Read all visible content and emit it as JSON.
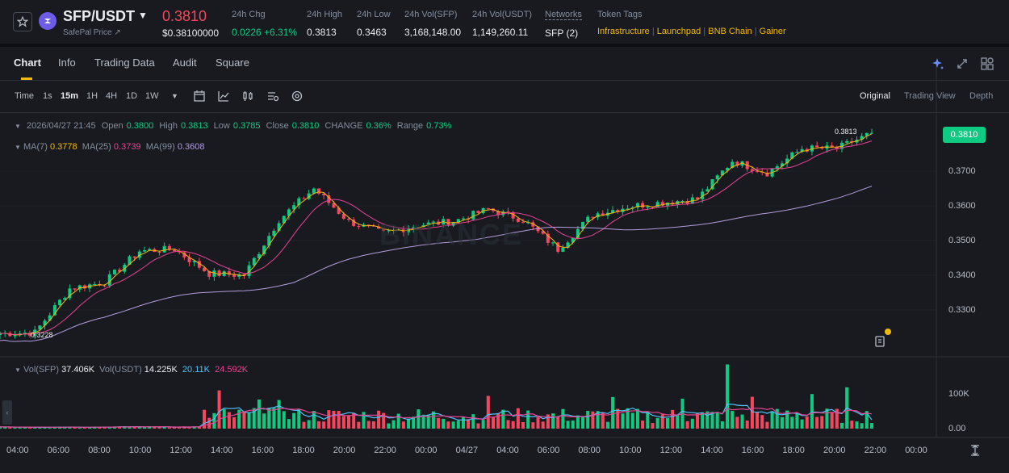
{
  "header": {
    "pair": "SFP/USDT",
    "price_link": "SafePal Price ↗",
    "last_price": "0.3810",
    "usd_price": "$0.38100000",
    "stats": [
      {
        "label": "24h Chg",
        "value": "0.0226 +6.31%"
      },
      {
        "label": "24h High",
        "value": "0.3813"
      },
      {
        "label": "24h Low",
        "value": "0.3463"
      },
      {
        "label": "24h Vol(SFP)",
        "value": "3,168,148.00"
      },
      {
        "label": "24h Vol(USDT)",
        "value": "1,149,260.11"
      },
      {
        "label": "Networks",
        "value": "SFP (2)"
      }
    ],
    "token_tags_label": "Token Tags",
    "token_tags": [
      "Infrastructure",
      "Launchpad",
      "BNB Chain",
      "Gainer"
    ]
  },
  "tabs": [
    "Chart",
    "Info",
    "Trading Data",
    "Audit",
    "Square"
  ],
  "toolbar": {
    "intervals": [
      "Time",
      "1s",
      "15m",
      "1H",
      "4H",
      "1D",
      "1W"
    ],
    "active_interval": "15m",
    "views": [
      "Original",
      "Trading View",
      "Depth"
    ],
    "active_view": "Original"
  },
  "ohlc": {
    "date": "2026/04/27 21:45",
    "open_label": "Open",
    "open": "0.3800",
    "high_label": "High",
    "high": "0.3813",
    "low_label": "Low",
    "low": "0.3785",
    "close_label": "Close",
    "close": "0.3810",
    "change_label": "CHANGE",
    "change": "0.36%",
    "range_label": "Range",
    "range": "0.73%"
  },
  "ma": {
    "ma7_label": "MA(7)",
    "ma7": "0.3778",
    "ma25_label": "MA(25)",
    "ma25": "0.3739",
    "ma99_label": "MA(99)",
    "ma99": "0.3608"
  },
  "vol": {
    "sfp_label": "Vol(SFP)",
    "sfp": "37.406K",
    "usdt_label": "Vol(USDT)",
    "usdt": "14.225K",
    "ma_a": "20.11K",
    "ma_b": "24.592K"
  },
  "price_axis": [
    "0.3700",
    "0.3600",
    "0.3500",
    "0.3400",
    "0.3300"
  ],
  "volume_axis": [
    "100K",
    "0.00"
  ],
  "time_axis": [
    "04:00",
    "06:00",
    "08:00",
    "10:00",
    "12:00",
    "14:00",
    "16:00",
    "18:00",
    "20:00",
    "22:00",
    "00:00",
    "04/27",
    "04:00",
    "06:00",
    "08:00",
    "10:00",
    "12:00",
    "14:00",
    "16:00",
    "18:00",
    "20:00",
    "22:00",
    "00:00"
  ],
  "high_marker": "0.3813",
  "low_marker": "0.3228",
  "watermark": "BINANCE",
  "colors": {
    "up": "#0ecb81",
    "down": "#f6465d",
    "ma7": "#f0b90b",
    "ma25": "#e84393",
    "ma99": "#b39ddb",
    "accent": "#f0b90b"
  },
  "chart_data": {
    "type": "candlestick",
    "interval": "15m",
    "price_key_points": [
      {
        "t": "04:00",
        "close": 0.3232
      },
      {
        "t": "11:00",
        "close": 0.3235
      },
      {
        "t": "12:00",
        "close": 0.3362
      },
      {
        "t": "13:30",
        "close": 0.338
      },
      {
        "t": "14:30",
        "close": 0.347
      },
      {
        "t": "16:00",
        "close": 0.3475
      },
      {
        "t": "17:30",
        "close": 0.3405
      },
      {
        "t": "19:30",
        "close": 0.34
      },
      {
        "t": "21:00",
        "close": 0.356
      },
      {
        "t": "22:30",
        "close": 0.365
      },
      {
        "t": "23:00",
        "close": 0.3555
      },
      {
        "t": "00:00",
        "close": 0.352
      },
      {
        "t": "02:00",
        "close": 0.3545
      },
      {
        "t": "04:00",
        "close": 0.3555
      },
      {
        "t": "06:00",
        "close": 0.359
      },
      {
        "t": "08:00",
        "close": 0.356
      },
      {
        "t": "09:30",
        "close": 0.3475
      },
      {
        "t": "11:00",
        "close": 0.3575
      },
      {
        "t": "12:00",
        "close": 0.3598
      },
      {
        "t": "14:00",
        "close": 0.361
      },
      {
        "t": "15:30",
        "close": 0.362
      },
      {
        "t": "16:30",
        "close": 0.373
      },
      {
        "t": "17:30",
        "close": 0.3695
      },
      {
        "t": "18:30",
        "close": 0.3765
      },
      {
        "t": "20:00",
        "close": 0.3765
      },
      {
        "t": "21:45",
        "close": 0.381
      }
    ],
    "ma7_last": 0.3778,
    "ma25_last": 0.3739,
    "ma99_last": 0.3608,
    "ylim": [
      0.322,
      0.3835
    ],
    "volume_ylim": [
      0,
      190000
    ]
  }
}
